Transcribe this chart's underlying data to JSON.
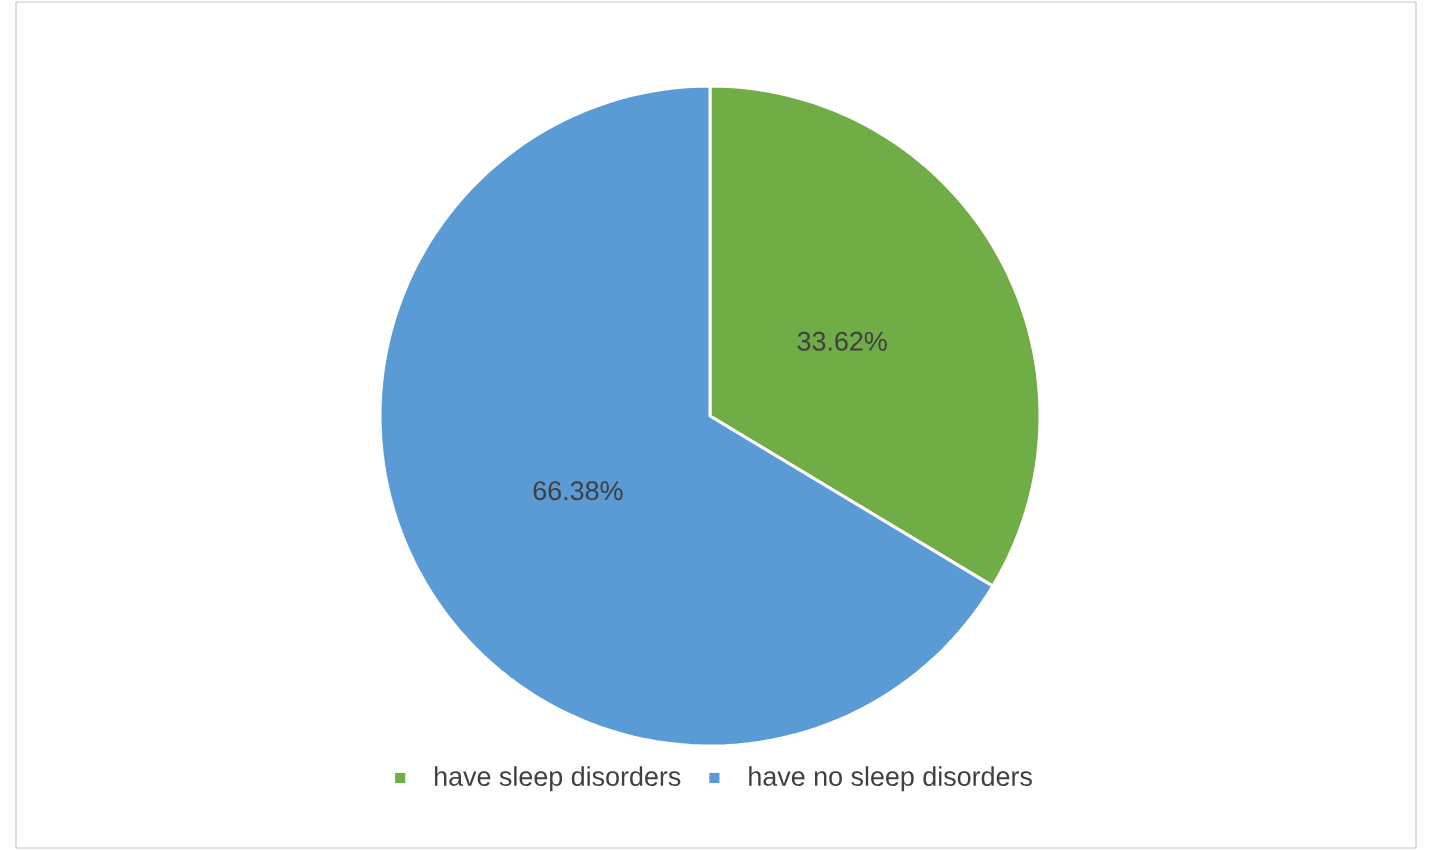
{
  "chart_data": {
    "type": "pie",
    "categories": [
      "have sleep disorders",
      "have no sleep disorders"
    ],
    "values": [
      33.62,
      66.38
    ],
    "colors": [
      "#70ad47",
      "#5b9bd5"
    ],
    "value_labels": [
      "33.62%",
      "66.38%"
    ],
    "legend": "bottom"
  }
}
